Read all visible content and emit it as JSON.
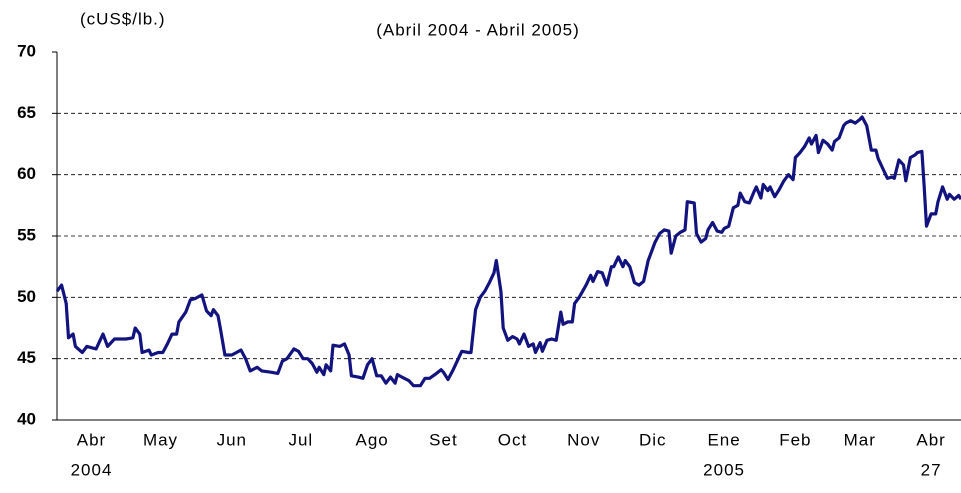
{
  "chart_data": {
    "type": "line",
    "unit_label": "(cUS$/lb.)",
    "subtitle": "(Abril 2004 - Abril 2005)",
    "xlim": [
      0,
      393
    ],
    "xticks": [
      {
        "value": 15,
        "label": "Abr"
      },
      {
        "value": 45,
        "label": "May"
      },
      {
        "value": 76,
        "label": "Jun"
      },
      {
        "value": 106,
        "label": "Jul"
      },
      {
        "value": 137,
        "label": "Ago"
      },
      {
        "value": 168,
        "label": "Set"
      },
      {
        "value": 198,
        "label": "Oct"
      },
      {
        "value": 229,
        "label": "Nov"
      },
      {
        "value": 259,
        "label": "Dic"
      },
      {
        "value": 290,
        "label": "Ene"
      },
      {
        "value": 321,
        "label": "Feb"
      },
      {
        "value": 349,
        "label": "Mar"
      },
      {
        "value": 380,
        "label": "Abr"
      }
    ],
    "xticks_second_row": [
      {
        "value": 15,
        "label": "2004"
      },
      {
        "value": 290,
        "label": "2005"
      },
      {
        "value": 380,
        "label": "27"
      }
    ],
    "ylim": [
      40,
      70
    ],
    "yticks": [
      40,
      45,
      50,
      55,
      60,
      65,
      70
    ],
    "grid": true,
    "series": [
      {
        "color": "#13137f",
        "x": [
          0,
          2,
          4,
          5,
          7,
          8,
          11,
          13,
          17,
          20,
          22,
          25,
          30,
          33,
          34,
          36,
          37,
          40,
          41,
          44,
          46,
          48,
          50,
          52,
          53,
          56,
          58,
          60,
          63,
          65,
          67,
          68,
          70,
          71,
          73,
          76,
          78,
          80,
          82,
          84,
          87,
          89,
          93,
          96,
          98,
          100,
          103,
          105,
          107,
          109,
          111,
          113,
          114,
          116,
          117,
          119,
          120,
          123,
          125,
          127,
          128,
          131,
          133,
          135,
          137,
          139,
          141,
          143,
          145,
          147,
          148,
          150,
          153,
          155,
          158,
          160,
          162,
          165,
          167,
          168,
          170,
          172,
          174,
          176,
          179,
          180,
          182,
          184,
          186,
          188,
          190,
          191,
          193,
          194,
          196,
          198,
          200,
          201,
          203,
          205,
          207,
          208,
          210,
          211,
          213,
          215,
          217,
          219,
          220,
          222,
          224,
          225,
          227,
          230,
          232,
          233,
          235,
          237,
          239,
          241,
          242,
          244,
          246,
          247,
          249,
          251,
          253,
          255,
          257,
          258,
          260,
          262,
          264,
          266,
          267,
          269,
          271,
          273,
          274,
          277,
          278,
          280,
          282,
          283,
          285,
          287,
          289,
          290,
          292,
          294,
          296,
          297,
          299,
          301,
          303,
          304,
          306,
          307,
          309,
          310,
          312,
          314,
          316,
          318,
          320,
          321,
          323,
          325,
          327,
          328,
          330,
          331,
          333,
          335,
          337,
          338,
          340,
          342,
          343,
          345,
          347,
          349,
          350,
          352,
          354,
          356,
          357,
          359,
          361,
          363,
          364,
          366,
          368,
          369,
          371,
          373,
          374,
          376,
          377,
          378,
          380,
          382,
          383,
          385,
          387,
          388,
          390,
          392,
          393
        ],
        "values": [
          50.5,
          51,
          49.5,
          46.7,
          47,
          46,
          45.5,
          46,
          45.8,
          47,
          46,
          46.6,
          46.6,
          46.7,
          47.5,
          47,
          45.5,
          45.7,
          45.3,
          45.5,
          45.5,
          46.2,
          47,
          47,
          48,
          48.8,
          49.8,
          49.9,
          50.2,
          48.9,
          48.5,
          49,
          48.5,
          47.5,
          45.3,
          45.3,
          45.5,
          45.7,
          45,
          44,
          44.3,
          44,
          43.9,
          43.8,
          44.8,
          45,
          45.8,
          45.6,
          45,
          45,
          44.6,
          43.9,
          44.3,
          43.7,
          44.5,
          44,
          46.1,
          46,
          46.2,
          45.3,
          43.6,
          43.5,
          43.4,
          44.5,
          45,
          43.6,
          43.6,
          43,
          43.5,
          43,
          43.7,
          43.5,
          43.2,
          42.8,
          42.8,
          43.4,
          43.4,
          43.8,
          44.1,
          43.9,
          43.3,
          44,
          44.8,
          45.6,
          45.5,
          45.5,
          49,
          50,
          50.5,
          51.2,
          52,
          53,
          50.5,
          47.5,
          46.5,
          46.8,
          46.6,
          46.2,
          47,
          46,
          46.2,
          45.5,
          46.3,
          45.6,
          46.5,
          46.6,
          46.5,
          48.8,
          47.8,
          48,
          48,
          49.5,
          50,
          51,
          51.8,
          51.3,
          52.1,
          52,
          51,
          52.5,
          52.5,
          53.3,
          52.5,
          53,
          52.5,
          51.2,
          51,
          51.3,
          53,
          53.5,
          54.5,
          55.2,
          55.5,
          55.4,
          53.6,
          55,
          55.3,
          55.5,
          57.8,
          57.7,
          55.2,
          54.5,
          54.8,
          55.5,
          56.1,
          55.4,
          55.3,
          55.6,
          55.8,
          57.3,
          57.5,
          58.5,
          57.8,
          57.7,
          58.6,
          59,
          58.1,
          59.2,
          58.7,
          59,
          58.2,
          58.8,
          59.5,
          60,
          59.6,
          61.4,
          61.8,
          62.3,
          63,
          62.5,
          63.2,
          61.8,
          62.8,
          62.5,
          62,
          62.7,
          63,
          64,
          64.2,
          64.4,
          64.2,
          64.5,
          64.7,
          64,
          62,
          62,
          61.3,
          60.5,
          59.7,
          59.8,
          59.7,
          61.2,
          60.8,
          59.5,
          61.4,
          61.6,
          61.8,
          61.9,
          59,
          55.8,
          56.8,
          56.8,
          57.8,
          59,
          58,
          58.4,
          58,
          58.3,
          58
        ]
      }
    ]
  }
}
